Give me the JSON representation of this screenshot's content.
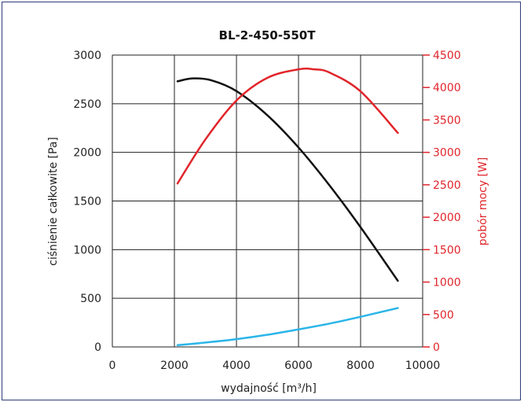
{
  "chart_data": {
    "type": "line",
    "title": "BL-2-450-550T",
    "xlabel": "wydajność [m³/h]",
    "ylabel": "ciśnienie całkowite [Pa]",
    "y2label": "pobór mocy [W]",
    "xlim": [
      0,
      10000
    ],
    "ylim": [
      0,
      3000
    ],
    "y2lim": [
      0,
      4500
    ],
    "xticks": [
      "0",
      "2000",
      "4000",
      "6000",
      "8000",
      "10000"
    ],
    "yticks": [
      "0",
      "500",
      "1000",
      "1500",
      "2000",
      "2500",
      "3000"
    ],
    "y2ticks": [
      "0",
      "500",
      "1000",
      "1500",
      "2000",
      "2500",
      "3000",
      "3500",
      "4000",
      "4500"
    ],
    "grid": true,
    "colors": {
      "pressure": "#111111",
      "power": "#e0252b",
      "efficiency": "#2bb5e8",
      "axis": "#222222",
      "frame": "#2f3d7a"
    },
    "series": [
      {
        "axis": "left",
        "color": "#111111",
        "x": [
          2100,
          2600,
          3200,
          4000,
          5000,
          6000,
          7000,
          8000,
          9200
        ],
        "y": [
          2730,
          2760,
          2740,
          2630,
          2380,
          2050,
          1660,
          1230,
          680
        ]
      },
      {
        "axis": "right",
        "color": "#e0252b",
        "x": [
          2100,
          3000,
          4000,
          5000,
          6000,
          6500,
          7000,
          8000,
          9200
        ],
        "y": [
          2520,
          3200,
          3800,
          4150,
          4280,
          4280,
          4230,
          3940,
          3300
        ]
      },
      {
        "axis": "left",
        "color": "#2bb5e8",
        "x": [
          2100,
          3000,
          4000,
          5000,
          6000,
          7000,
          8000,
          9200
        ],
        "y": [
          18,
          45,
          80,
          125,
          180,
          240,
          310,
          400
        ]
      }
    ]
  }
}
